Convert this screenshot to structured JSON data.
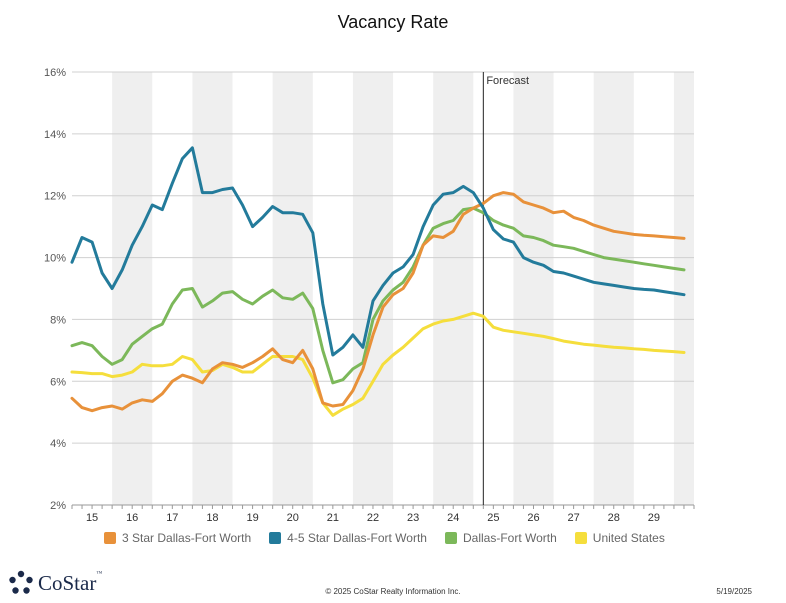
{
  "chart_data": {
    "type": "line",
    "title": "Vacancy Rate",
    "xlabel": "",
    "ylabel": "",
    "ylim": [
      2,
      16
    ],
    "xlim": [
      2014.5,
      2030.0
    ],
    "yticks": [
      "2%",
      "4%",
      "6%",
      "8%",
      "10%",
      "12%",
      "14%",
      "16%"
    ],
    "xtick_labels": [
      "15",
      "16",
      "17",
      "18",
      "19",
      "20",
      "21",
      "22",
      "23",
      "24",
      "25",
      "26",
      "27",
      "28",
      "29"
    ],
    "forecast_label": "Forecast",
    "forecast_start": 2024.75,
    "grid": "horizontal",
    "shaded_alternate_years": true,
    "legend_position": "bottom",
    "x": [
      2014.5,
      2014.75,
      2015,
      2015.25,
      2015.5,
      2015.75,
      2016,
      2016.25,
      2016.5,
      2016.75,
      2017,
      2017.25,
      2017.5,
      2017.75,
      2018,
      2018.25,
      2018.5,
      2018.75,
      2019,
      2019.25,
      2019.5,
      2019.75,
      2020,
      2020.25,
      2020.5,
      2020.75,
      2021,
      2021.25,
      2021.5,
      2021.75,
      2022,
      2022.25,
      2022.5,
      2022.75,
      2023,
      2023.25,
      2023.5,
      2023.75,
      2024,
      2024.25,
      2024.5,
      2024.75,
      2025,
      2025.25,
      2025.5,
      2025.75,
      2026,
      2026.25,
      2026.5,
      2026.75,
      2027,
      2027.25,
      2027.5,
      2027.75,
      2028,
      2028.25,
      2028.5,
      2028.75,
      2029,
      2029.25,
      2029.5,
      2029.75
    ],
    "series": [
      {
        "name": "3 Star Dallas-Fort Worth",
        "color": "#e8913a",
        "values": [
          5.45,
          5.15,
          5.05,
          5.15,
          5.2,
          5.1,
          5.3,
          5.4,
          5.35,
          5.6,
          6.0,
          6.2,
          6.1,
          5.95,
          6.4,
          6.6,
          6.55,
          6.45,
          6.6,
          6.8,
          7.05,
          6.7,
          6.6,
          7.0,
          6.4,
          5.3,
          5.2,
          5.25,
          5.7,
          6.4,
          7.5,
          8.4,
          8.8,
          9.0,
          9.5,
          10.4,
          10.7,
          10.65,
          10.85,
          11.4,
          11.6,
          11.75,
          12.0,
          12.1,
          12.05,
          11.8,
          11.7,
          11.6,
          11.45,
          11.5,
          11.3,
          11.2,
          11.05,
          10.95,
          10.85,
          10.8,
          10.75,
          10.72,
          10.7,
          10.67,
          10.65,
          10.62
        ]
      },
      {
        "name": "4-5 Star Dallas-Fort Worth",
        "color": "#237b9b",
        "values": [
          9.85,
          10.65,
          10.5,
          9.5,
          9.0,
          9.6,
          10.4,
          11.0,
          11.7,
          11.55,
          12.4,
          13.2,
          13.55,
          12.1,
          12.1,
          12.2,
          12.25,
          11.7,
          11.0,
          11.3,
          11.65,
          11.45,
          11.45,
          11.4,
          10.8,
          8.5,
          6.85,
          7.1,
          7.5,
          7.1,
          8.6,
          9.1,
          9.5,
          9.7,
          10.1,
          11.0,
          11.7,
          12.05,
          12.1,
          12.3,
          12.1,
          11.6,
          10.9,
          10.6,
          10.5,
          10.0,
          9.85,
          9.75,
          9.55,
          9.5,
          9.4,
          9.3,
          9.2,
          9.15,
          9.1,
          9.05,
          9.0,
          8.97,
          8.95,
          8.9,
          8.85,
          8.8
        ]
      },
      {
        "name": "Dallas-Fort Worth",
        "color": "#7cb85a",
        "values": [
          7.15,
          7.25,
          7.15,
          6.8,
          6.55,
          6.7,
          7.2,
          7.45,
          7.7,
          7.85,
          8.5,
          8.95,
          9.0,
          8.4,
          8.6,
          8.85,
          8.9,
          8.65,
          8.5,
          8.75,
          8.95,
          8.7,
          8.65,
          8.85,
          8.35,
          7.0,
          5.95,
          6.05,
          6.4,
          6.6,
          8.0,
          8.6,
          8.95,
          9.2,
          9.7,
          10.4,
          10.95,
          11.1,
          11.2,
          11.55,
          11.6,
          11.45,
          11.2,
          11.05,
          10.95,
          10.7,
          10.65,
          10.55,
          10.4,
          10.35,
          10.3,
          10.2,
          10.1,
          10.0,
          9.95,
          9.9,
          9.85,
          9.8,
          9.75,
          9.7,
          9.65,
          9.6
        ]
      },
      {
        "name": "United States",
        "color": "#f5de3c",
        "values": [
          6.3,
          6.28,
          6.25,
          6.25,
          6.15,
          6.2,
          6.3,
          6.55,
          6.5,
          6.5,
          6.55,
          6.8,
          6.7,
          6.3,
          6.35,
          6.55,
          6.45,
          6.3,
          6.3,
          6.55,
          6.8,
          6.8,
          6.8,
          6.7,
          6.1,
          5.3,
          4.9,
          5.1,
          5.25,
          5.45,
          6.0,
          6.55,
          6.85,
          7.1,
          7.4,
          7.7,
          7.85,
          7.95,
          8.0,
          8.1,
          8.2,
          8.1,
          7.75,
          7.65,
          7.6,
          7.55,
          7.5,
          7.45,
          7.38,
          7.3,
          7.25,
          7.2,
          7.17,
          7.13,
          7.1,
          7.08,
          7.05,
          7.03,
          7.0,
          6.98,
          6.96,
          6.93
        ]
      }
    ]
  },
  "footer": {
    "copyright": "© 2025 CoStar Realty Information Inc.",
    "date": "5/19/2025",
    "logo_text": "CoStar",
    "logo_tm": "™"
  }
}
